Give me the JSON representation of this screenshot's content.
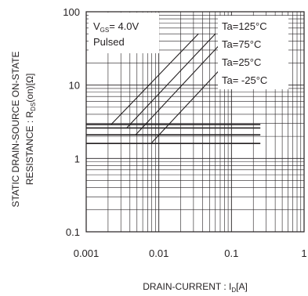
{
  "chart_data": {
    "type": "line",
    "x_scale": "log",
    "y_scale": "log",
    "xlim": [
      0.001,
      1
    ],
    "ylim": [
      0.1,
      100
    ],
    "grid": true,
    "x_ticks": [
      "0.001",
      "0.01",
      "0.1",
      "1"
    ],
    "y_ticks": [
      "0.1",
      "1",
      "10",
      "100"
    ],
    "xlabel": {
      "pre": "DRAIN-CURRENT : I",
      "sub": "D",
      "post": "[A]"
    },
    "ylabel": {
      "line1": "STATIC DRAIN-SOURCE ON-STATE",
      "line2_pre": "RESISTANCE : R",
      "line2_sub": "DS",
      "line2_post": "(on)[Ω]"
    },
    "conditions": {
      "vgs_pre": "V",
      "vgs_sub": "GS",
      "vgs_post": "= 4.0V",
      "mode": "Pulsed"
    },
    "series": [
      {
        "name": "Ta=125°C",
        "x": [
          0.001,
          0.0022,
          0.25
        ],
        "y": [
          2.9,
          2.9,
          2.9
        ],
        "x_rising": [
          0.0022,
          0.035
        ],
        "y_rising": [
          2.9,
          50
        ]
      },
      {
        "name": "Ta=75°C",
        "x": [
          0.001,
          0.0036,
          0.25
        ],
        "y": [
          2.6,
          2.6,
          2.6
        ],
        "x_rising": [
          0.0036,
          0.06
        ],
        "y_rising": [
          2.6,
          50
        ]
      },
      {
        "name": "Ta=25°C",
        "x": [
          0.001,
          0.0048,
          0.25
        ],
        "y": [
          2.1,
          2.1,
          2.1
        ],
        "x_rising": [
          0.0048,
          0.095
        ],
        "y_rising": [
          2.1,
          50
        ]
      },
      {
        "name": "Ta= -25°C",
        "x": [
          0.001,
          0.0078,
          0.25
        ],
        "y": [
          1.6,
          1.6,
          1.6
        ],
        "x_rising": [
          0.0078,
          0.17
        ],
        "y_rising": [
          1.6,
          42
        ]
      }
    ],
    "colors": {
      "line": "#231f20",
      "grid": "#231f20",
      "background": "#ffffff"
    }
  }
}
